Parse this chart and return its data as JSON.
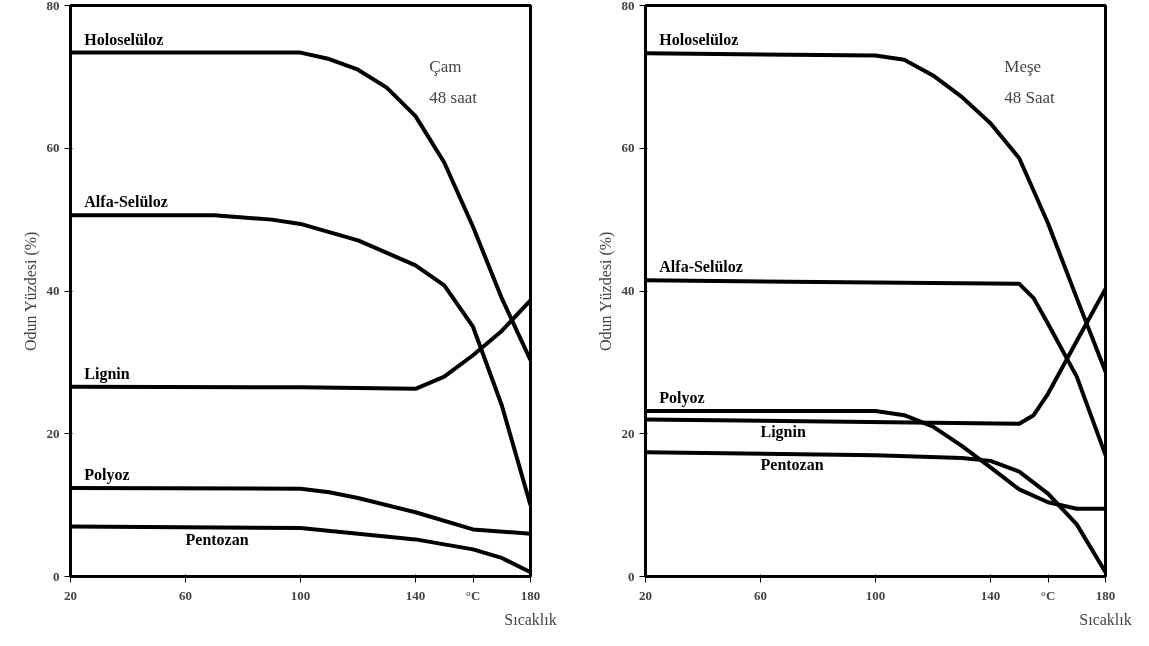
{
  "chart_data": [
    {
      "type": "line",
      "xlabel": "Sıcaklık",
      "ylabel": "Odun Yüzdesi (%)",
      "annotations": [
        "Çam",
        "48 saat"
      ],
      "xlim": [
        20,
        180
      ],
      "ylim": [
        0,
        80
      ],
      "xticks": [
        20,
        60,
        100,
        140,
        {
          "value": 160,
          "label": "°C"
        },
        180
      ],
      "yticks": [
        0,
        20,
        40,
        60,
        80
      ],
      "grid": false,
      "legend": false,
      "marker": "none",
      "line_style": "solid",
      "series": [
        {
          "name": "Holoselüloz",
          "color": "#000000",
          "x": [
            20,
            100,
            110,
            120,
            130,
            140,
            150,
            160,
            170,
            180
          ],
          "values": [
            73.4,
            73.4,
            72.5,
            71,
            68.5,
            64.5,
            58,
            49,
            39,
            30.3
          ]
        },
        {
          "name": "Alfa-Selüloz",
          "color": "#000000",
          "x": [
            20,
            70,
            90,
            100,
            120,
            140,
            150,
            160,
            170,
            180
          ],
          "values": [
            50.6,
            50.6,
            50,
            49.4,
            47.1,
            43.6,
            40.8,
            35,
            24,
            10
          ]
        },
        {
          "name": "Lignin",
          "color": "#000000",
          "x": [
            20,
            100,
            140,
            150,
            160,
            170,
            180
          ],
          "values": [
            26.6,
            26.5,
            26.3,
            28,
            31,
            34.4,
            38.7
          ]
        },
        {
          "name": "Polyoz",
          "color": "#000000",
          "x": [
            20,
            100,
            110,
            120,
            140,
            160,
            180
          ],
          "values": [
            12.4,
            12.3,
            11.8,
            11,
            9,
            6.6,
            6
          ]
        },
        {
          "name": "Pentozan",
          "color": "#000000",
          "x": [
            20,
            100,
            140,
            160,
            170,
            180
          ],
          "values": [
            7,
            6.8,
            5.2,
            3.8,
            2.6,
            0.6
          ]
        }
      ]
    },
    {
      "type": "line",
      "xlabel": "Sıcaklık",
      "ylabel": "Odun Yüzdesi (%)",
      "annotations": [
        "Meşe",
        "48 Saat"
      ],
      "xlim": [
        20,
        180
      ],
      "ylim": [
        0,
        80
      ],
      "xticks": [
        20,
        60,
        100,
        140,
        {
          "value": 160,
          "label": "°C"
        },
        180
      ],
      "yticks": [
        0,
        20,
        40,
        60,
        80
      ],
      "grid": false,
      "legend": false,
      "marker": "none",
      "line_style": "solid",
      "series": [
        {
          "name": "Holoselüloz",
          "color": "#000000",
          "x": [
            20,
            100,
            110,
            120,
            130,
            140,
            150,
            160,
            170,
            180
          ],
          "values": [
            73.3,
            73,
            72.4,
            70.2,
            67.2,
            63.5,
            58.6,
            49.5,
            39,
            28.7
          ]
        },
        {
          "name": "Alfa-Selüloz",
          "color": "#000000",
          "x": [
            20,
            150,
            155,
            160,
            170,
            180
          ],
          "values": [
            41.5,
            41,
            39,
            35.4,
            28,
            17
          ]
        },
        {
          "name": "Polyoz",
          "color": "#000000",
          "x": [
            20,
            100,
            110,
            120,
            130,
            140,
            150,
            160,
            170,
            180
          ],
          "values": [
            23.2,
            23.2,
            22.6,
            21,
            18.3,
            15.3,
            12.2,
            10.4,
            9.5,
            9.5
          ]
        },
        {
          "name": "Lignin",
          "color": "#000000",
          "x": [
            20,
            150,
            155,
            160,
            170,
            180
          ],
          "values": [
            22,
            21.4,
            22.6,
            25.6,
            33,
            40.3
          ]
        },
        {
          "name": "Pentozan",
          "color": "#000000",
          "x": [
            20,
            100,
            130,
            140,
            150,
            160,
            170,
            180
          ],
          "values": [
            17.4,
            17,
            16.6,
            16.2,
            14.7,
            11.6,
            7.3,
            0.6
          ]
        }
      ]
    }
  ]
}
